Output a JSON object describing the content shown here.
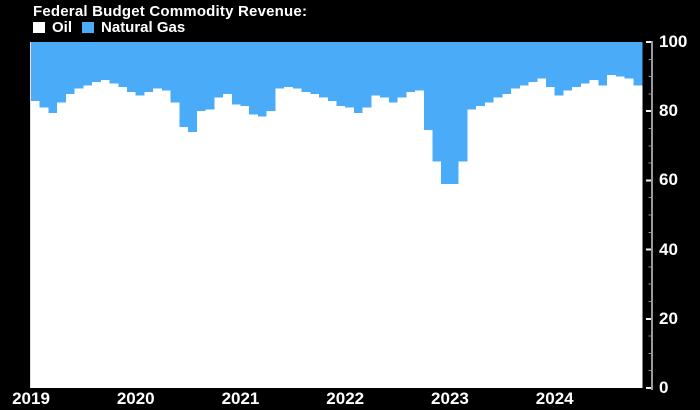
{
  "header": {
    "title": "Federal Budget Commodity Revenue:",
    "legend": [
      {
        "label": "Oil",
        "color": "#ffffff"
      },
      {
        "label": "Natural Gas",
        "color": "#4aabf8"
      }
    ]
  },
  "colors": {
    "background": "#000000",
    "oil": "#ffffff",
    "natural_gas": "#4aabf8",
    "axis_line": "#9a9a9a",
    "major_tick": "#f0f0f0",
    "minor_tick": "#909090",
    "plot_left_border": "#e0e0e0",
    "text": "#ffffff"
  },
  "chart_data": {
    "type": "area",
    "subtype": "100-percent-stacked-monthly-steps",
    "title": "Federal Budget Commodity Revenue:",
    "xlabel": "",
    "ylabel": "",
    "unit": "% share of revenue",
    "ylim": [
      0,
      100
    ],
    "y_major_ticks": [
      0,
      20,
      40,
      60,
      80,
      100
    ],
    "y_minor_tick_step": 5,
    "y_axis_side": "right",
    "legend_position": "top-left",
    "grid": false,
    "x_tick_labels": [
      "2019",
      "2020",
      "2021",
      "2022",
      "2023",
      "2024"
    ],
    "months_per_x_tick": 12,
    "x": [
      "2019-01",
      "2019-02",
      "2019-03",
      "2019-04",
      "2019-05",
      "2019-06",
      "2019-07",
      "2019-08",
      "2019-09",
      "2019-10",
      "2019-11",
      "2019-12",
      "2020-01",
      "2020-02",
      "2020-03",
      "2020-04",
      "2020-05",
      "2020-06",
      "2020-07",
      "2020-08",
      "2020-09",
      "2020-10",
      "2020-11",
      "2020-12",
      "2021-01",
      "2021-02",
      "2021-03",
      "2021-04",
      "2021-05",
      "2021-06",
      "2021-07",
      "2021-08",
      "2021-09",
      "2021-10",
      "2021-11",
      "2021-12",
      "2022-01",
      "2022-02",
      "2022-03",
      "2022-04",
      "2022-05",
      "2022-06",
      "2022-07",
      "2022-08",
      "2022-09",
      "2022-10",
      "2022-11",
      "2022-12",
      "2023-01",
      "2023-02",
      "2023-03",
      "2023-04",
      "2023-05",
      "2023-06",
      "2023-07",
      "2023-08",
      "2023-09",
      "2023-10",
      "2023-11",
      "2023-12",
      "2024-01",
      "2024-02",
      "2024-03",
      "2024-04",
      "2024-05",
      "2024-06",
      "2024-07",
      "2024-08",
      "2024-09",
      "2024-10"
    ],
    "series": [
      {
        "name": "Oil",
        "color": "#ffffff",
        "values": [
          83,
          81,
          79.5,
          82.5,
          85,
          86.5,
          87.5,
          88.5,
          89,
          88,
          87,
          85.5,
          84.5,
          85.5,
          86.5,
          86,
          82.5,
          75.5,
          74,
          80,
          80.5,
          84,
          85,
          82,
          81.5,
          79,
          78.5,
          80,
          86.5,
          87,
          86.5,
          85.5,
          85,
          84,
          83,
          81.5,
          81,
          79.5,
          81,
          84.5,
          84,
          82.5,
          84,
          85.5,
          86,
          74.5,
          65.5,
          59,
          59,
          65.5,
          80.5,
          81.5,
          82.5,
          84,
          85,
          86.5,
          87.5,
          88.5,
          89.5,
          87,
          84.5,
          86,
          87,
          88,
          89,
          87.5,
          90.5,
          90,
          89.5,
          87.5
        ]
      },
      {
        "name": "Natural Gas",
        "color": "#4aabf8",
        "values": [
          17,
          19,
          20.5,
          17.5,
          15,
          13.5,
          12.5,
          11.5,
          11,
          12,
          13,
          14.5,
          15.5,
          14.5,
          13.5,
          14,
          17.5,
          24.5,
          26,
          20,
          19.5,
          16,
          15,
          18,
          18.5,
          21,
          21.5,
          20,
          13.5,
          13,
          13.5,
          14.5,
          15,
          16,
          17,
          18.5,
          19,
          20.5,
          19,
          15.5,
          16,
          17.5,
          16,
          14.5,
          14,
          25.5,
          34.5,
          41,
          41,
          34.5,
          19.5,
          18.5,
          17.5,
          16,
          15,
          13.5,
          12.5,
          11.5,
          10.5,
          13,
          15.5,
          14,
          13,
          12,
          11,
          12.5,
          9.5,
          10,
          10.5,
          12.5
        ]
      }
    ]
  }
}
